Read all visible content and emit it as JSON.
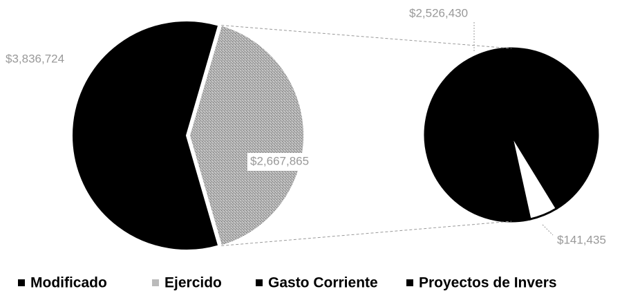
{
  "chart_data": {
    "type": "pie-of-pie",
    "categories": [
      "Modificado",
      "Ejercido",
      "Gasto Corriente",
      "Proyectos de Invers"
    ],
    "values": [
      3836724,
      2667865,
      2526430,
      141435
    ],
    "value_labels": [
      "$3,836,724",
      "$2,667,865",
      "$2,526,430",
      "$141,435"
    ],
    "colors": [
      "#000000",
      "#a9a9a9",
      "#000000",
      "#ffffff"
    ],
    "second_plot_count": 2
  }
}
